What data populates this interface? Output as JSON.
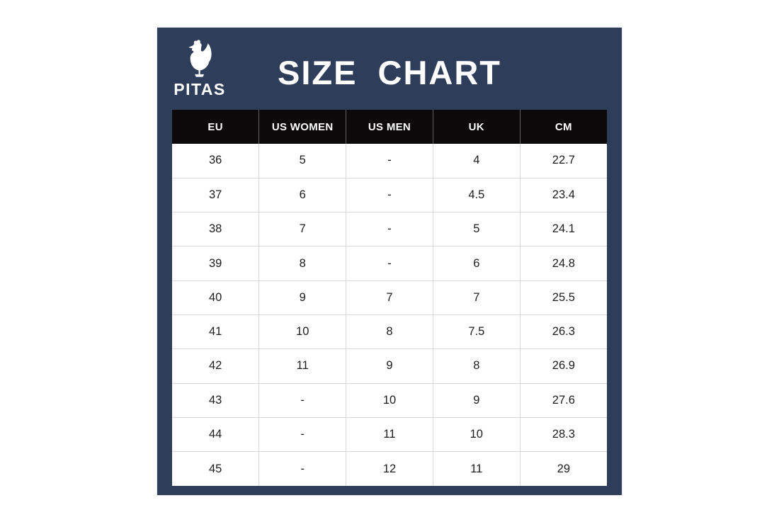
{
  "brand": {
    "name": "PITAS",
    "logo_icon": "rooster-icon"
  },
  "title": "SIZE CHART",
  "colors": {
    "panel_bg": "#2e3d5a",
    "header_bg": "#0b0909",
    "header_text": "#ffffff",
    "row_divider": "#d8d8d8",
    "header_divider": "#5f5f5f",
    "cell_text": "#1c1c1e",
    "page_bg": "#ffffff"
  },
  "chart_data": {
    "type": "table",
    "title": "SIZE CHART",
    "columns": [
      "EU",
      "US WOMEN",
      "US MEN",
      "UK",
      "CM"
    ],
    "rows": [
      [
        "36",
        "5",
        "-",
        "4",
        "22.7"
      ],
      [
        "37",
        "6",
        "-",
        "4.5",
        "23.4"
      ],
      [
        "38",
        "7",
        "-",
        "5",
        "24.1"
      ],
      [
        "39",
        "8",
        "-",
        "6",
        "24.8"
      ],
      [
        "40",
        "9",
        "7",
        "7",
        "25.5"
      ],
      [
        "41",
        "10",
        "8",
        "7.5",
        "26.3"
      ],
      [
        "42",
        "11",
        "9",
        "8",
        "26.9"
      ],
      [
        "43",
        "-",
        "10",
        "9",
        "27.6"
      ],
      [
        "44",
        "-",
        "11",
        "10",
        "28.3"
      ],
      [
        "45",
        "-",
        "12",
        "11",
        "29"
      ]
    ]
  }
}
